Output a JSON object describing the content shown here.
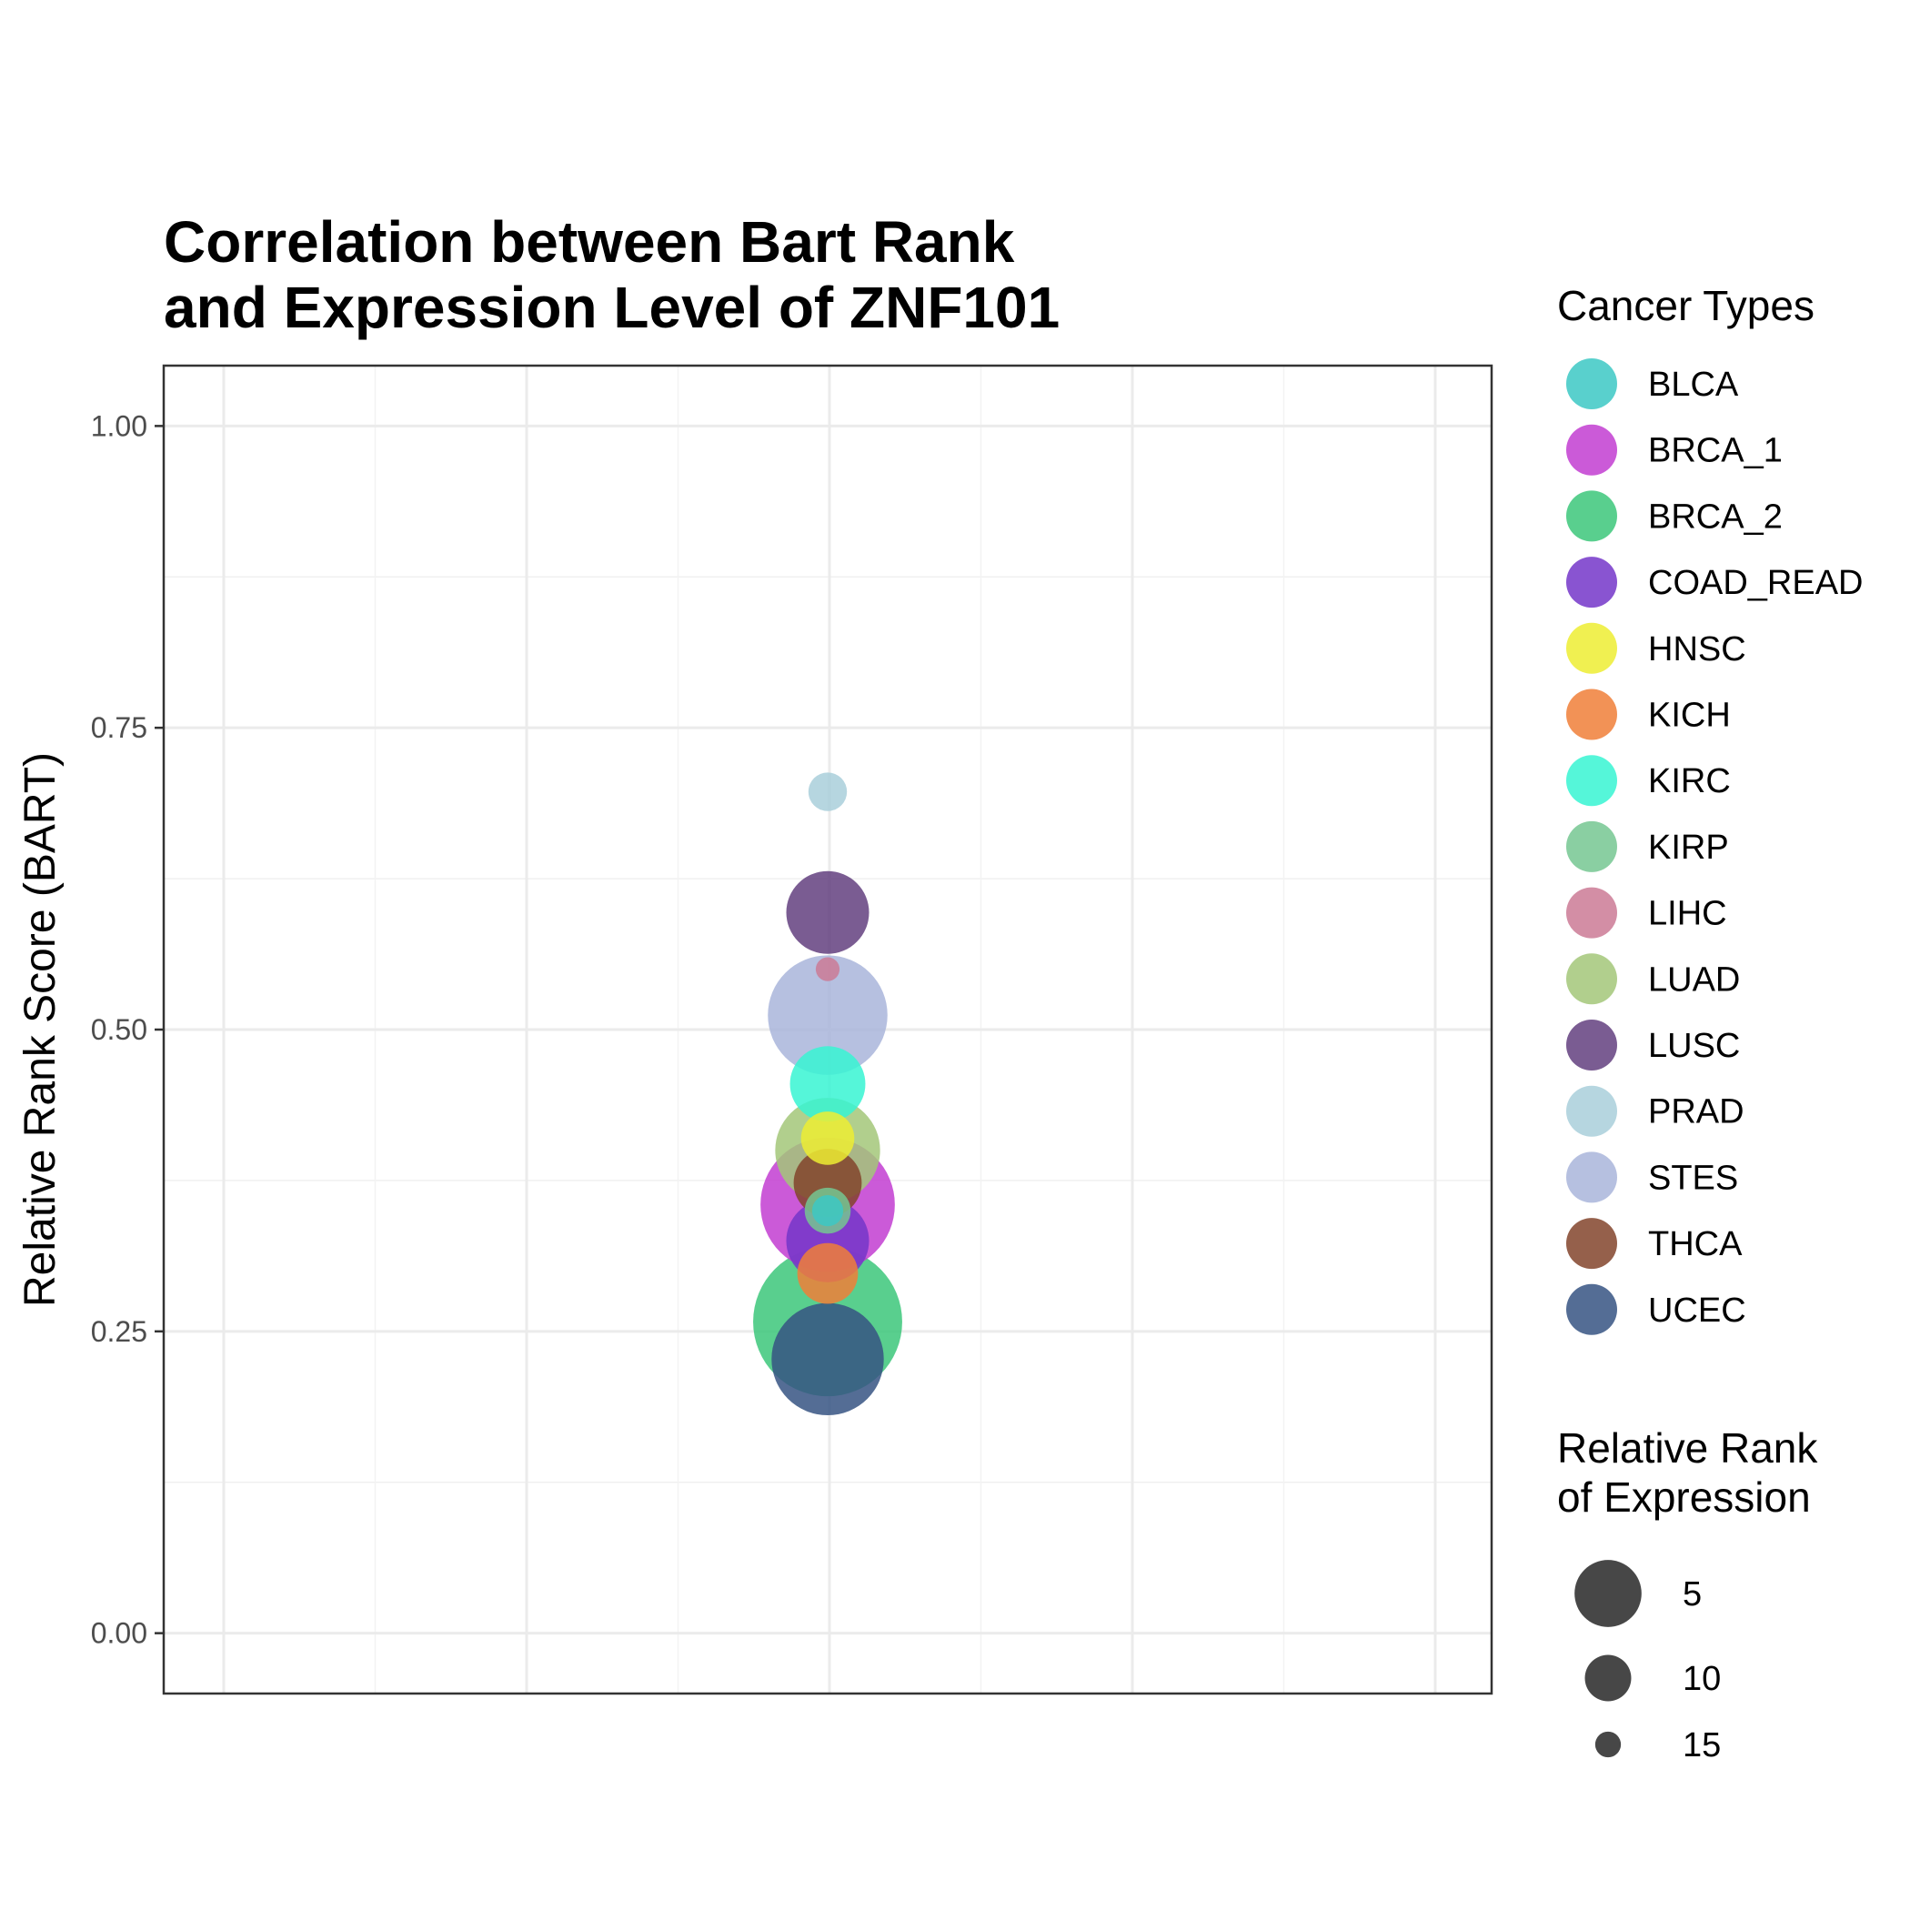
{
  "chart_data": {
    "type": "scatter",
    "title_lines": [
      "Correlation between Bart Rank",
      "and Expression Level of ZNF101"
    ],
    "xlabel": "",
    "ylabel": "Relative Rank Score (BART)",
    "ylim": [
      -0.05,
      1.05
    ],
    "y_ticks": [
      {
        "value": 0.0,
        "label": "0.00"
      },
      {
        "value": 0.25,
        "label": "0.25"
      },
      {
        "value": 0.5,
        "label": "0.50"
      },
      {
        "value": 0.75,
        "label": "0.75"
      },
      {
        "value": 1.0,
        "label": "1.00"
      }
    ],
    "grid": true,
    "legend_position": "right",
    "color_legend_title": "Cancer Types",
    "size_legend_title_lines": [
      "Relative Rank",
      "of Expression"
    ],
    "size_legend": [
      {
        "label": "5",
        "value": 5
      },
      {
        "label": "10",
        "value": 10
      },
      {
        "label": "15",
        "value": 15
      }
    ],
    "series": [
      {
        "name": "BLCA",
        "color": "#3CC8C4",
        "y": 0.35,
        "size": 17
      },
      {
        "name": "BRCA_1",
        "color": "#C23DD1",
        "y": 0.355,
        "size": 3
      },
      {
        "name": "BRCA_2",
        "color": "#3CC77A",
        "y": 0.258,
        "size": 1
      },
      {
        "name": "COAD_READ",
        "color": "#7436C9",
        "y": 0.325,
        "size": 10
      },
      {
        "name": "HNSC",
        "color": "#EDED32",
        "y": 0.41,
        "size": 14
      },
      {
        "name": "KICH",
        "color": "#F07F38",
        "y": 0.298,
        "size": 13
      },
      {
        "name": "KIRC",
        "color": "#37F5D2",
        "y": 0.455,
        "size": 11
      },
      {
        "name": "KIRP",
        "color": "#76C792",
        "y": 0.35,
        "size": 15
      },
      {
        "name": "LIHC",
        "color": "#CB7A95",
        "y": 0.55,
        "size": 18
      },
      {
        "name": "LUAD",
        "color": "#A3C779",
        "y": 0.4,
        "size": 7
      },
      {
        "name": "LUSC",
        "color": "#633F7F",
        "y": 0.597,
        "size": 10
      },
      {
        "name": "PRAD",
        "color": "#A9CFDA",
        "y": 0.697,
        "size": 16
      },
      {
        "name": "STES",
        "color": "#A9B5DA",
        "y": 0.512,
        "size": 5
      },
      {
        "name": "THCA",
        "color": "#83442C",
        "y": 0.373,
        "size": 12
      },
      {
        "name": "UCEC",
        "color": "#365483",
        "y": 0.227,
        "size": 6
      }
    ]
  }
}
